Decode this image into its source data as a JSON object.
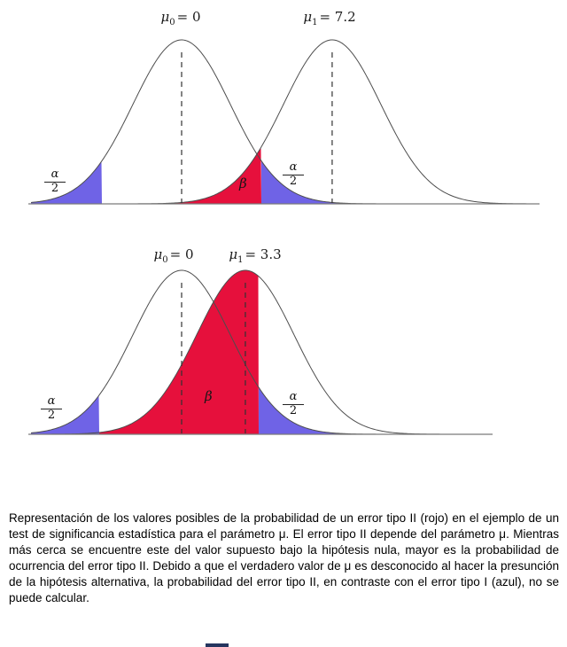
{
  "figure": {
    "caption": "Representación de los valores posibles de la probabilidad de un error tipo II (rojo) en el ejemplo de un test de significancia estadística para el parámetro μ. El error tipo II depende del parámetro μ. Mientras más cerca se encuentre este del valor supuesto bajo la hipótesis nula, mayor es la probabilidad de ocurrencia del error tipo II. Debido a que el verdadero valor de μ es desconocido al hacer la presunción de la hipótesis alternativa, la probabilidad del error tipo II, en contraste con el error tipo I (azul), no se puede calcular."
  },
  "chart_data": [
    {
      "type": "area",
      "subtype": "overlapping-normal-distributions",
      "title": "",
      "grid": false,
      "legend": false,
      "curves": [
        {
          "name": "null-hypothesis-curve",
          "symbol": "μ",
          "subscript": "0",
          "value_text": "= 0",
          "mean": 0
        },
        {
          "name": "alternative-hypothesis-curve",
          "symbol": "μ",
          "subscript": "1",
          "value_text": "= 7.2",
          "mean": 7.2
        }
      ],
      "regions": [
        {
          "name": "alpha-half-left",
          "numerator": "α",
          "denominator": "2",
          "color": "#6f63e6"
        },
        {
          "name": "beta",
          "label": "β",
          "color": "#e6103c"
        },
        {
          "name": "alpha-half-right",
          "numerator": "α",
          "denominator": "2",
          "color": "#6f63e6"
        }
      ]
    },
    {
      "type": "area",
      "subtype": "overlapping-normal-distributions",
      "title": "",
      "grid": false,
      "legend": false,
      "curves": [
        {
          "name": "null-hypothesis-curve",
          "symbol": "μ",
          "subscript": "0",
          "value_text": "= 0",
          "mean": 0
        },
        {
          "name": "alternative-hypothesis-curve",
          "symbol": "μ",
          "subscript": "1",
          "value_text": "= 3.3",
          "mean": 3.3
        }
      ],
      "regions": [
        {
          "name": "alpha-half-left",
          "numerator": "α",
          "denominator": "2",
          "color": "#6f63e6"
        },
        {
          "name": "beta",
          "label": "β",
          "color": "#e6103c"
        },
        {
          "name": "alpha-half-right",
          "numerator": "α",
          "denominator": "2",
          "color": "#6f63e6"
        }
      ]
    }
  ]
}
